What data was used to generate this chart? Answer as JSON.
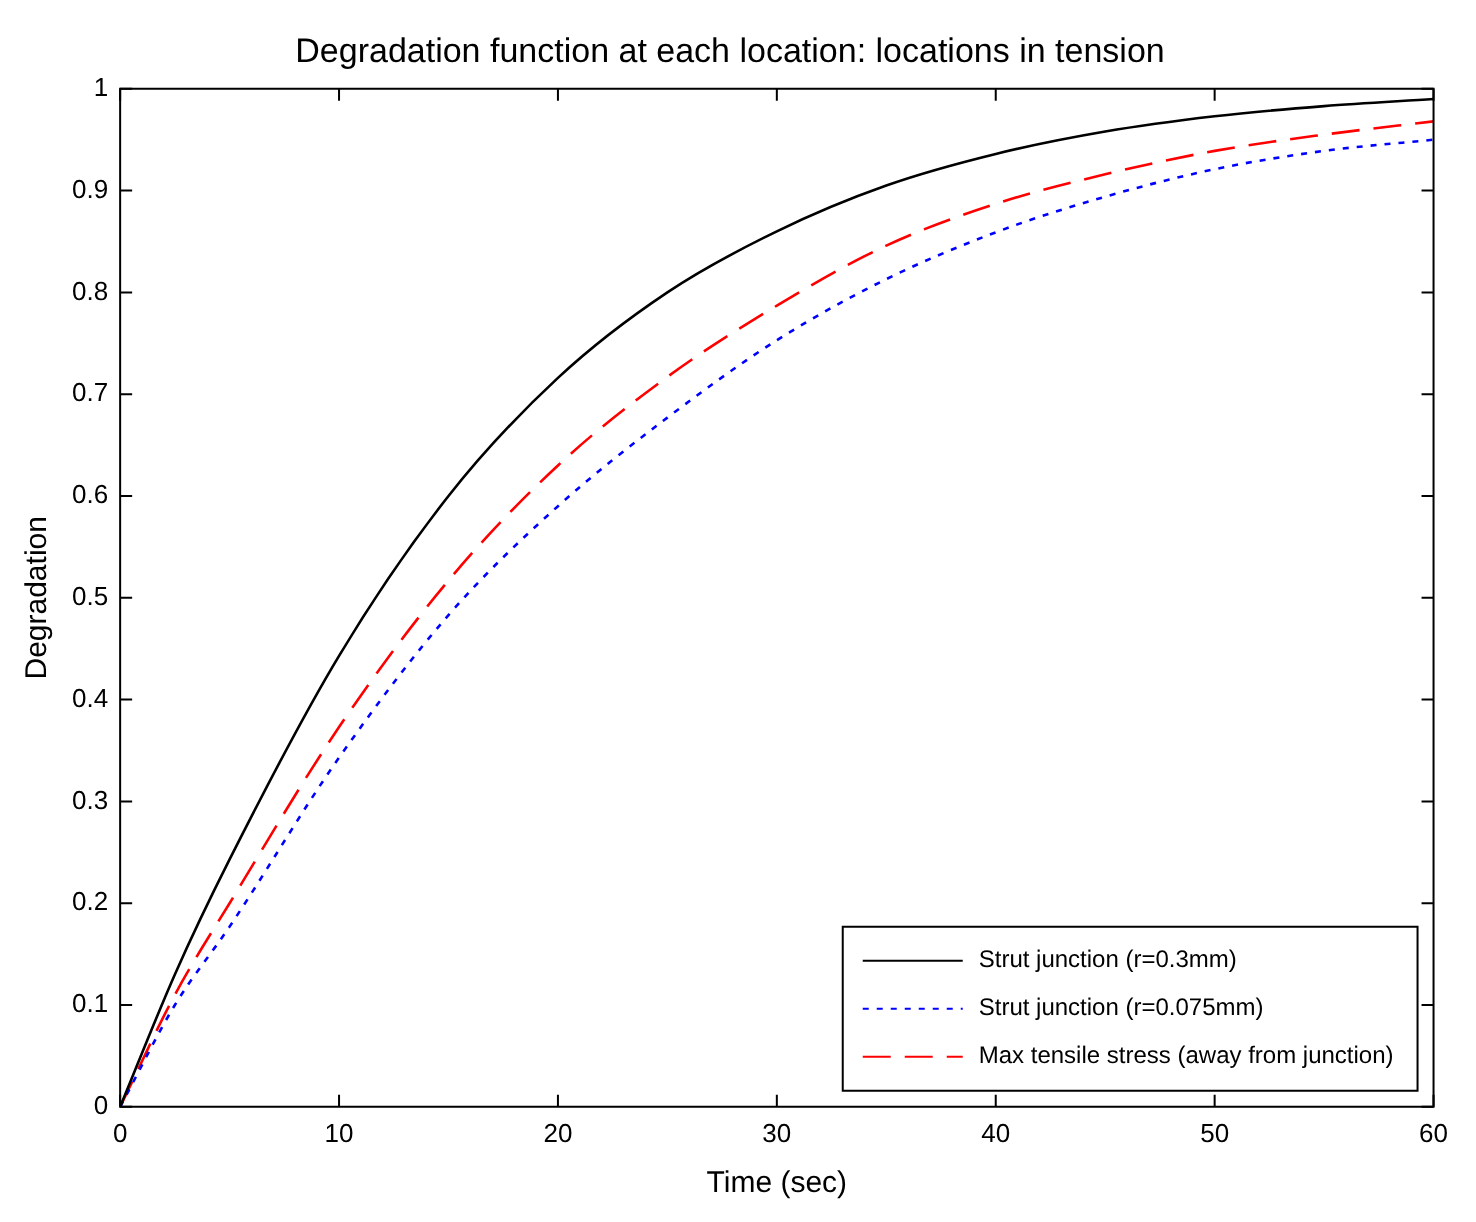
{
  "chart_data": {
    "type": "line",
    "title": "Degradation function at each location: locations in tension",
    "xlabel": "Time (sec)",
    "ylabel": "Degradation",
    "x": [
      0,
      2.5,
      5,
      10,
      15,
      20,
      25,
      30,
      35,
      40,
      45,
      50,
      55,
      60
    ],
    "series": [
      {
        "name": "Strut junction (r=0.3mm)",
        "color": "#000000",
        "line_style": "solid",
        "values": [
          0,
          0.13,
          0.243,
          0.443,
          0.6,
          0.716,
          0.8,
          0.86,
          0.905,
          0.936,
          0.958,
          0.973,
          0.983,
          0.99
        ]
      },
      {
        "name": "Strut junction (r=0.075mm)",
        "color": "#0000ff",
        "line_style": "dotted",
        "values": [
          0,
          0.1,
          0.177,
          0.343,
          0.483,
          0.59,
          0.677,
          0.753,
          0.813,
          0.859,
          0.894,
          0.921,
          0.939,
          0.95
        ]
      },
      {
        "name": "Max tensile stress (away from junction)",
        "color": "#ff0000",
        "line_style": "dashed",
        "values": [
          0,
          0.11,
          0.2,
          0.373,
          0.517,
          0.63,
          0.717,
          0.787,
          0.846,
          0.887,
          0.916,
          0.939,
          0.955,
          0.968
        ]
      }
    ],
    "xlim": [
      0,
      60
    ],
    "xticks": [
      0,
      10,
      20,
      30,
      40,
      50,
      60
    ],
    "ylim": [
      0,
      1
    ],
    "yticks": [
      0,
      0.1,
      0.2,
      0.3,
      0.4,
      0.5,
      0.6,
      0.7,
      0.8,
      0.9,
      1
    ],
    "grid": false,
    "legend": "bottom right",
    "marker": "none"
  }
}
